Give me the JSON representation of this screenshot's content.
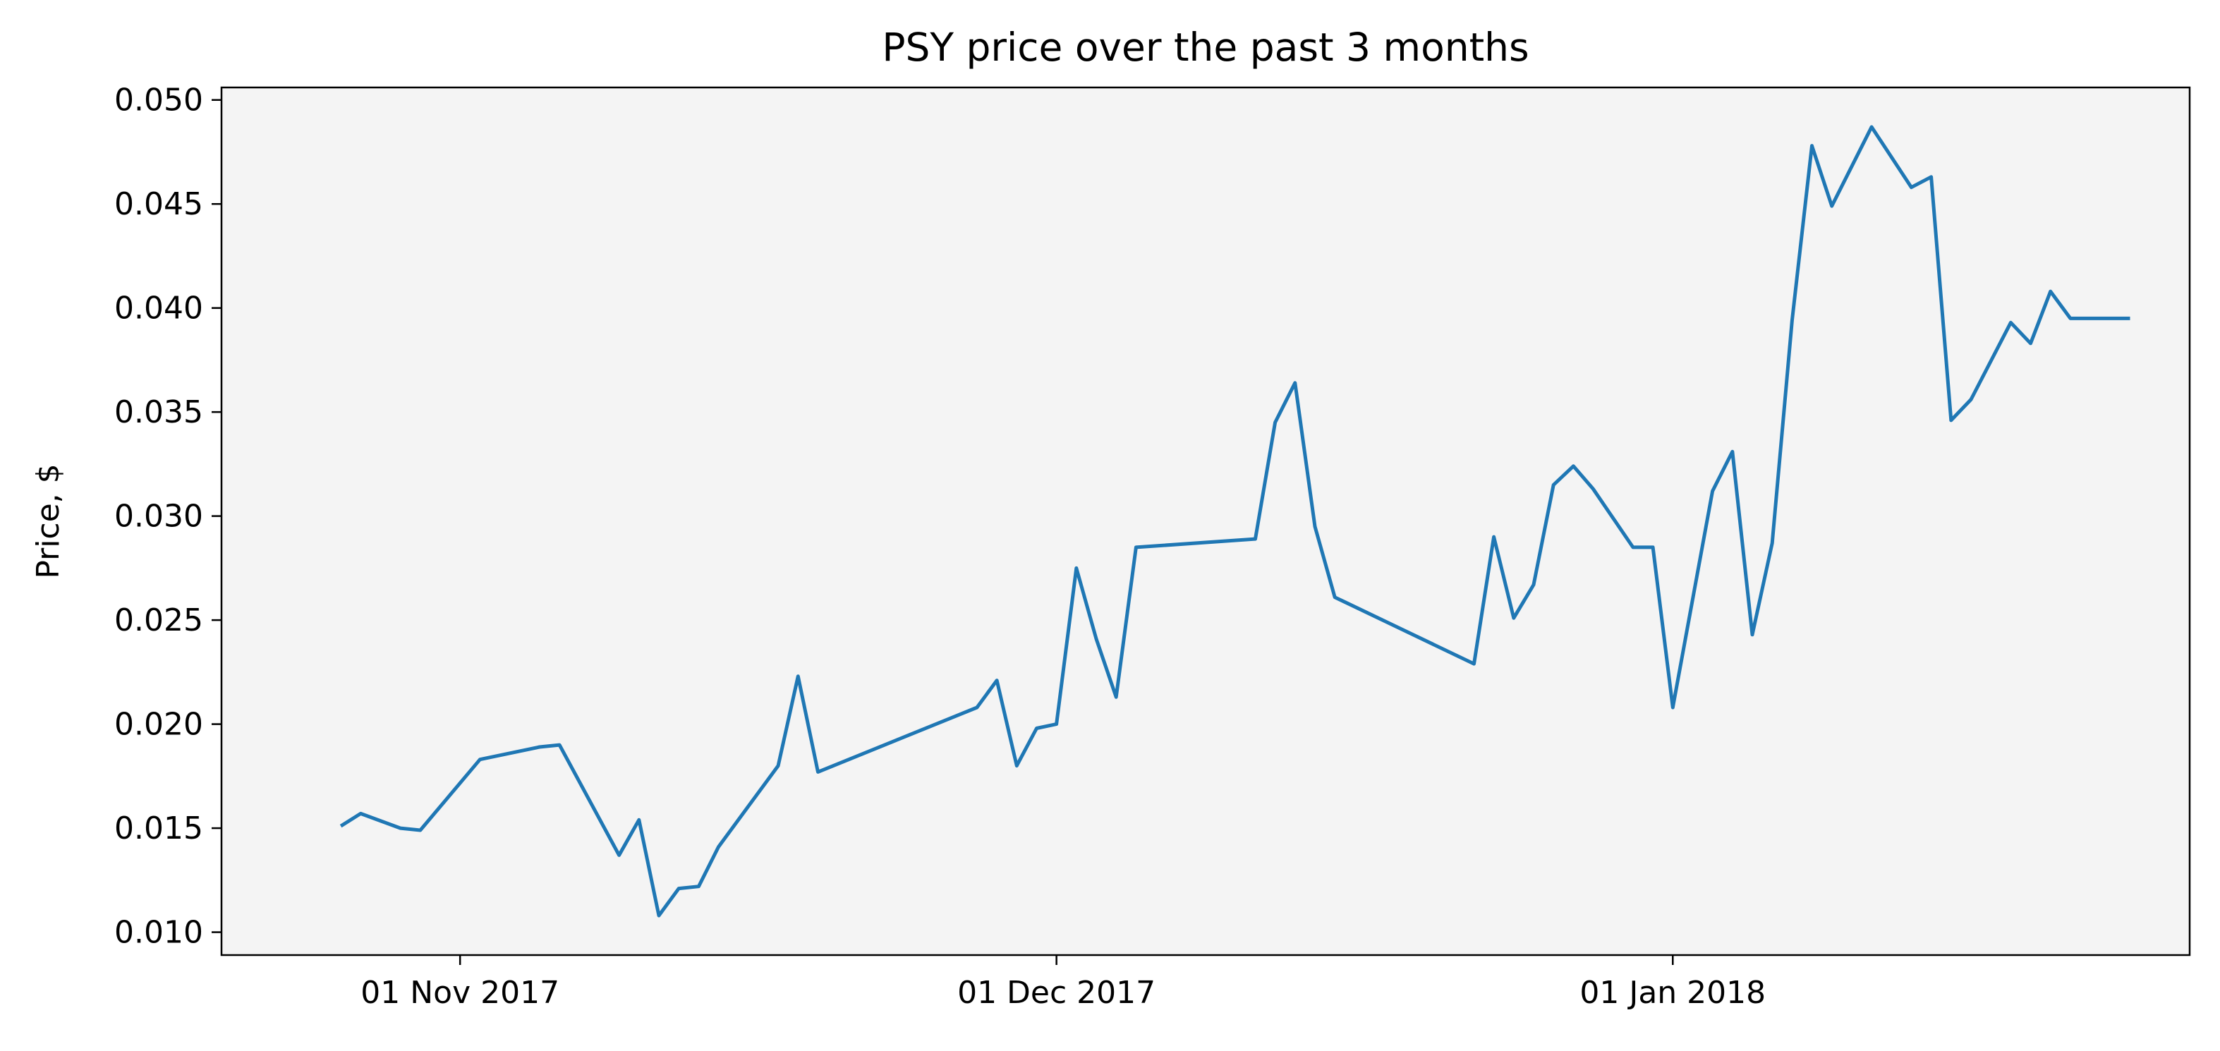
{
  "chart_data": {
    "type": "line",
    "title": "PSY price over the past 3 months",
    "xlabel": "",
    "ylabel": "Price, $",
    "x_tick_labels": [
      {
        "date": "2017-11-01",
        "label": "01 Nov 2017"
      },
      {
        "date": "2017-12-01",
        "label": "01 Dec 2017"
      },
      {
        "date": "2018-01-01",
        "label": "01 Jan 2018"
      }
    ],
    "y_ticks": [
      0.01,
      0.015,
      0.02,
      0.025,
      0.03,
      0.035,
      0.04,
      0.045,
      0.05
    ],
    "y_tick_labels": [
      "0.010",
      "0.015",
      "0.020",
      "0.025",
      "0.030",
      "0.035",
      "0.040",
      "0.045",
      "0.050"
    ],
    "xlim": [
      "2017-10-20",
      "2018-01-27"
    ],
    "ylim": [
      0.0089,
      0.0506
    ],
    "grid": false,
    "background_color": "#f4f4f4",
    "line_color": "#1f77b4",
    "series": [
      {
        "x": [
          "2017-10-26",
          "2017-10-27",
          "2017-10-29",
          "2017-10-30",
          "2017-11-02",
          "2017-11-03",
          "2017-11-05",
          "2017-11-06",
          "2017-11-09",
          "2017-11-10",
          "2017-11-11",
          "2017-11-12",
          "2017-11-13",
          "2017-11-14",
          "2017-11-17",
          "2017-11-18",
          "2017-11-19",
          "2017-11-27",
          "2017-11-28",
          "2017-11-29",
          "2017-11-30",
          "2017-12-01",
          "2017-12-02",
          "2017-12-03",
          "2017-12-04",
          "2017-12-05",
          "2017-12-11",
          "2017-12-12",
          "2017-12-13",
          "2017-12-14",
          "2017-12-15",
          "2017-12-22",
          "2017-12-23",
          "2017-12-24",
          "2017-12-25",
          "2017-12-26",
          "2017-12-27",
          "2017-12-28",
          "2017-12-30",
          "2017-12-31",
          "2018-01-01",
          "2018-01-03",
          "2018-01-04",
          "2018-01-05",
          "2018-01-06",
          "2018-01-07",
          "2018-01-08",
          "2018-01-09",
          "2018-01-11",
          "2018-01-13",
          "2018-01-14",
          "2018-01-15",
          "2018-01-16",
          "2018-01-18",
          "2018-01-19",
          "2018-01-20",
          "2018-01-21",
          "2018-01-22",
          "2018-01-23",
          "2018-01-24"
        ],
        "y": [
          0.0151,
          0.0157,
          0.015,
          0.0149,
          0.0183,
          0.0185,
          0.0189,
          0.019,
          0.0137,
          0.0154,
          0.0108,
          0.0121,
          0.0122,
          0.0141,
          0.018,
          0.0223,
          0.0177,
          0.0208,
          0.0221,
          0.018,
          0.0198,
          0.02,
          0.0275,
          0.0241,
          0.0213,
          0.0285,
          0.0289,
          0.0345,
          0.0364,
          0.0295,
          0.0261,
          0.0229,
          0.029,
          0.0251,
          0.0267,
          0.0315,
          0.0324,
          0.0313,
          0.0285,
          0.0285,
          0.0208,
          0.0312,
          0.0331,
          0.0243,
          0.0287,
          0.0394,
          0.0478,
          0.0449,
          0.0487,
          0.0458,
          0.0463,
          0.0346,
          0.0356,
          0.0393,
          0.0383,
          0.0408,
          0.0395,
          0.0395,
          0.0395,
          0.0395
        ]
      }
    ]
  }
}
